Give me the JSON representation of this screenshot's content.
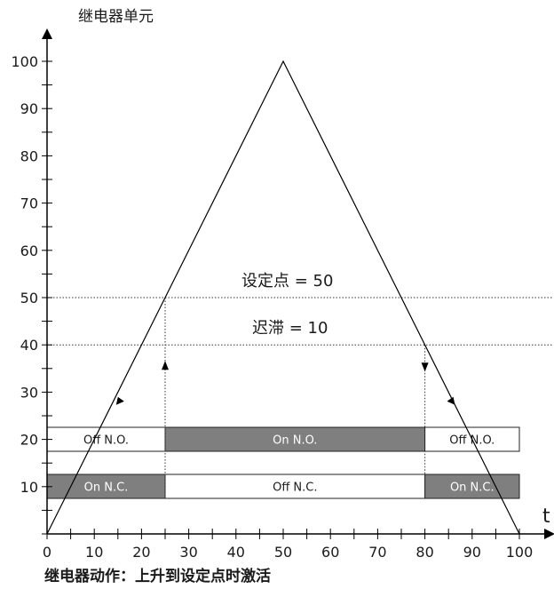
{
  "y_axis_label": "继电器单元",
  "x_axis_label": "t",
  "caption": "继电器动作：上升到设定点时激活",
  "setpoint_label": "设定点 = 50",
  "hysteresis_label": "迟滞 = 10",
  "x_ticks": [
    "0",
    "10",
    "20",
    "30",
    "40",
    "50",
    "60",
    "70",
    "80",
    "90",
    "100"
  ],
  "y_ticks": [
    "10",
    "20",
    "30",
    "40",
    "50",
    "60",
    "70",
    "80",
    "90",
    "100"
  ],
  "colors": {
    "on": "#7f7f7f",
    "off": "#ffffff",
    "line": "#000000"
  },
  "chart_data": {
    "type": "line",
    "xlabel": "t",
    "ylabel": "继电器单元",
    "xlim": [
      0,
      100
    ],
    "ylim": [
      0,
      100
    ],
    "series": [
      {
        "x": [
          0,
          50,
          100
        ],
        "y": [
          0,
          100,
          0
        ]
      }
    ],
    "reference_lines": [
      {
        "y": 50,
        "label": "设定点 = 50"
      },
      {
        "y": 40,
        "label": "迟滞 = 10"
      }
    ],
    "switch_points": [
      25,
      80
    ],
    "no_bar": [
      {
        "from": 0,
        "to": 25,
        "label": "Off N.O.",
        "state": "off"
      },
      {
        "from": 25,
        "to": 80,
        "label": "On N.O.",
        "state": "on"
      },
      {
        "from": 80,
        "to": 100,
        "label": "Off N.O.",
        "state": "off"
      }
    ],
    "nc_bar": [
      {
        "from": 0,
        "to": 25,
        "label": "On N.C.",
        "state": "on"
      },
      {
        "from": 25,
        "to": 80,
        "label": "Off N.C.",
        "state": "off"
      },
      {
        "from": 80,
        "to": 100,
        "label": "On N.C.",
        "state": "on"
      }
    ]
  }
}
